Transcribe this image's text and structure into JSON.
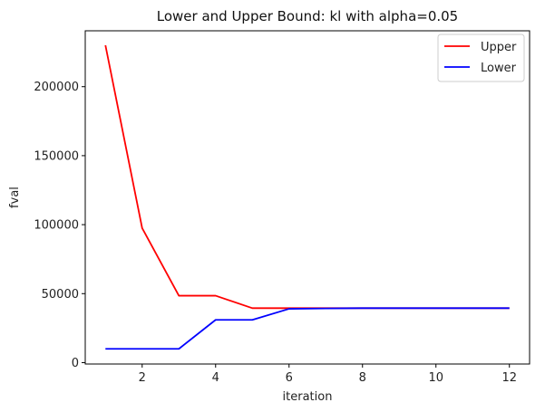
{
  "chart_data": {
    "type": "line",
    "title": "Lower and Upper Bound: kl with alpha=0.05",
    "xlabel": "iteration",
    "ylabel": "fval",
    "xlim": [
      0.45,
      12.55
    ],
    "ylim": [
      -1000,
      240500
    ],
    "xticks": [
      2,
      4,
      6,
      8,
      10,
      12
    ],
    "yticks": [
      0,
      50000,
      100000,
      150000,
      200000
    ],
    "x": [
      1,
      2,
      3,
      4,
      5,
      6,
      7,
      8,
      9,
      10,
      11,
      12
    ],
    "series": [
      {
        "name": "Upper",
        "color": "#ff0000",
        "values": [
          230000,
          97500,
          48500,
          48500,
          39500,
          39500,
          39500,
          39500,
          39500,
          39500,
          39500,
          39500
        ]
      },
      {
        "name": "Lower",
        "color": "#0000ff",
        "values": [
          10000,
          10000,
          10000,
          31000,
          31000,
          39000,
          39300,
          39500,
          39500,
          39500,
          39500,
          39500
        ]
      }
    ],
    "grid": false,
    "legend_position": "top-right"
  }
}
